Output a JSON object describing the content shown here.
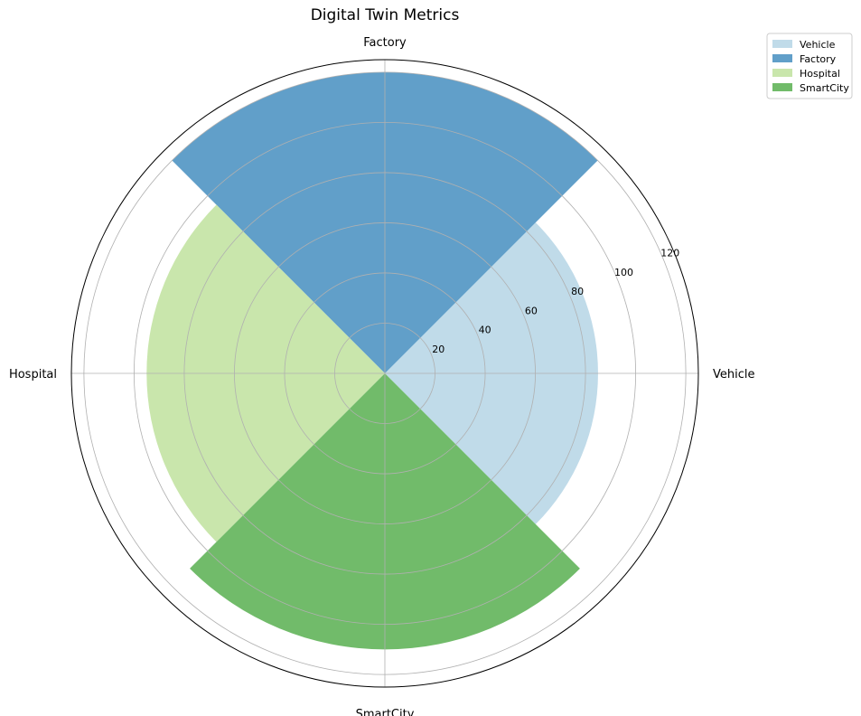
{
  "chart_data": {
    "type": "polar-bar",
    "title": "Digital Twin Metrics",
    "categories": [
      "Vehicle",
      "Factory",
      "Hospital",
      "SmartCity"
    ],
    "values": [
      85,
      120,
      95,
      110
    ],
    "colors": [
      "#c0dbe9",
      "#619fc9",
      "#c9e6ac",
      "#71bb6a"
    ],
    "r_ticks": [
      20,
      40,
      60,
      80,
      100,
      120
    ],
    "rlim": [
      0,
      125
    ],
    "grid": true,
    "legend": {
      "placement": "top-right",
      "entries": [
        "Vehicle",
        "Factory",
        "Hospital",
        "SmartCity"
      ]
    }
  }
}
